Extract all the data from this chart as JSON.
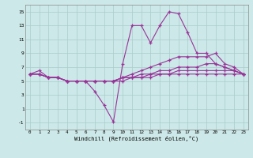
{
  "title": "",
  "xlabel": "Windchill (Refroidissement éolien,°C)",
  "ylabel": "",
  "xlim": [
    -0.5,
    23.5
  ],
  "ylim": [
    -2,
    16
  ],
  "yticks": [
    -1,
    1,
    3,
    5,
    7,
    9,
    11,
    13,
    15
  ],
  "xticks": [
    0,
    1,
    2,
    3,
    4,
    5,
    6,
    7,
    8,
    9,
    10,
    11,
    12,
    13,
    14,
    15,
    16,
    17,
    18,
    19,
    20,
    21,
    22,
    23
  ],
  "background_color": "#cce8e8",
  "grid_color": "#aacccc",
  "line_color": "#993399",
  "lines": [
    {
      "x": [
        0,
        1,
        2,
        3,
        4,
        5,
        6,
        7,
        8,
        9,
        10,
        11,
        12,
        13,
        14,
        15,
        16,
        17,
        18,
        19,
        20,
        21,
        22,
        23
      ],
      "y": [
        6,
        6.5,
        5.5,
        5.5,
        5,
        5,
        5,
        3.5,
        1.5,
        -0.9,
        7.5,
        13,
        13,
        10.5,
        13,
        15,
        14.7,
        12,
        9,
        9,
        7.5,
        7,
        6.5,
        6
      ]
    },
    {
      "x": [
        0,
        1,
        2,
        3,
        4,
        5,
        6,
        7,
        8,
        9,
        10,
        11,
        12,
        13,
        14,
        15,
        16,
        17,
        18,
        19,
        20,
        21,
        22,
        23
      ],
      "y": [
        6,
        6,
        5.5,
        5.5,
        5,
        5,
        5,
        5,
        5,
        5,
        5.5,
        6,
        6.5,
        7,
        7.5,
        8,
        8.5,
        8.5,
        8.5,
        8.5,
        9,
        7.5,
        7,
        6
      ]
    },
    {
      "x": [
        0,
        1,
        2,
        3,
        4,
        5,
        6,
        7,
        8,
        9,
        10,
        11,
        12,
        13,
        14,
        15,
        16,
        17,
        18,
        19,
        20,
        21,
        22,
        23
      ],
      "y": [
        6,
        6,
        5.5,
        5.5,
        5,
        5,
        5,
        5,
        5,
        5,
        5.5,
        5.5,
        6,
        6,
        6.5,
        6.5,
        7,
        7,
        7,
        7.5,
        7.5,
        7,
        6.5,
        6
      ]
    },
    {
      "x": [
        0,
        1,
        2,
        3,
        4,
        5,
        6,
        7,
        8,
        9,
        10,
        11,
        12,
        13,
        14,
        15,
        16,
        17,
        18,
        19,
        20,
        21,
        22,
        23
      ],
      "y": [
        6,
        6,
        5.5,
        5.5,
        5,
        5,
        5,
        5,
        5,
        5,
        5.5,
        5.5,
        5.5,
        6,
        6,
        6,
        6.5,
        6.5,
        6.5,
        6.5,
        6.5,
        6.5,
        6.5,
        6
      ]
    },
    {
      "x": [
        0,
        1,
        2,
        3,
        4,
        5,
        6,
        7,
        8,
        9,
        10,
        11,
        12,
        13,
        14,
        15,
        16,
        17,
        18,
        19,
        20,
        21,
        22,
        23
      ],
      "y": [
        6,
        6,
        5.5,
        5.5,
        5,
        5,
        5,
        5,
        5,
        5,
        5,
        5.5,
        5.5,
        5.5,
        6,
        6,
        6,
        6,
        6,
        6,
        6,
        6,
        6,
        6
      ]
    }
  ]
}
